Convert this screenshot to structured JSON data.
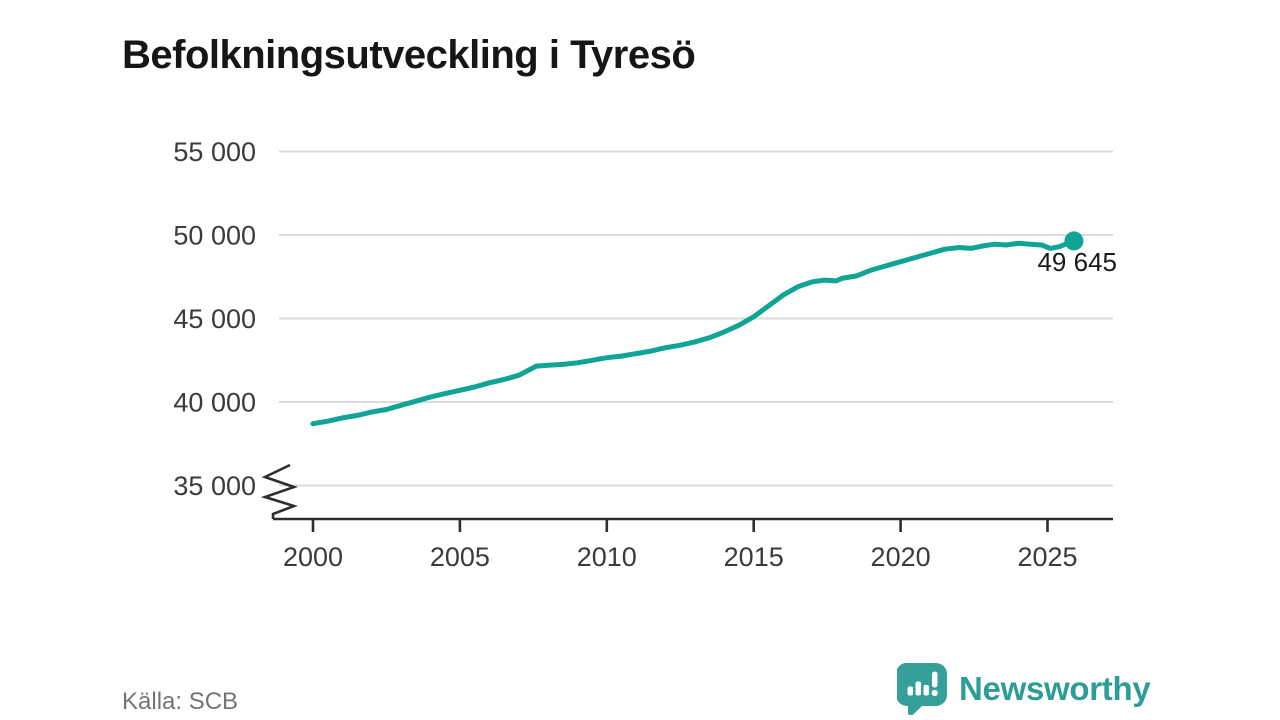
{
  "title": "Befolkningsutveckling i Tyresö",
  "source": "Källa: SCB",
  "branding": {
    "logo_text": "Newsworthy",
    "logo_icon": "bar-chart-speech-bubble-icon"
  },
  "colors": {
    "line": "#10a494",
    "end_dot": "#10a494",
    "grid": "#dcdcdc",
    "axis": "#2e2e2e",
    "tick_label": "#3b3b3b",
    "title_text": "#161616",
    "source_text": "#757575",
    "brand_teal": "#2f9d97",
    "background": "#ffffff"
  },
  "chart_data": {
    "type": "line",
    "title": "Befolkningsutveckling i Tyresö",
    "xlabel": "",
    "ylabel": "",
    "grid": "horizontal",
    "legend": "none",
    "axis_break_low": true,
    "xlim": [
      1998.6,
      2027.2
    ],
    "ylim": [
      33000,
      55000
    ],
    "x_ticks": [
      2000,
      2005,
      2010,
      2015,
      2020,
      2025
    ],
    "x_tick_labels": [
      "2000",
      "2005",
      "2010",
      "2015",
      "2020",
      "2025"
    ],
    "y_ticks": [
      35000,
      40000,
      45000,
      50000,
      55000
    ],
    "y_tick_labels": [
      "35 000",
      "40 000",
      "45 000",
      "50 000",
      "55 000"
    ],
    "x": [
      2000,
      2000.5,
      2001,
      2001.5,
      2002,
      2002.5,
      2003,
      2003.5,
      2004,
      2004.5,
      2005,
      2005.5,
      2006,
      2006.5,
      2007,
      2007.6,
      2008,
      2008.5,
      2009,
      2009.5,
      2010,
      2010.5,
      2011,
      2011.5,
      2012,
      2012.5,
      2013,
      2013.5,
      2014,
      2014.5,
      2015,
      2015.5,
      2016,
      2016.5,
      2017,
      2017.4,
      2017.8,
      2018,
      2018.5,
      2019,
      2019.5,
      2020,
      2020.5,
      2021,
      2021.5,
      2022,
      2022.4,
      2022.8,
      2023.2,
      2023.6,
      2024,
      2024.4,
      2024.8,
      2025.1,
      2025.4,
      2025.9
    ],
    "y": [
      38700,
      38850,
      39050,
      39200,
      39400,
      39550,
      39800,
      40050,
      40300,
      40500,
      40700,
      40900,
      41150,
      41350,
      41600,
      42150,
      42200,
      42250,
      42350,
      42500,
      42650,
      42750,
      42900,
      43050,
      43250,
      43400,
      43600,
      43850,
      44200,
      44600,
      45100,
      45750,
      46400,
      46900,
      47200,
      47300,
      47250,
      47400,
      47550,
      47900,
      48150,
      48400,
      48650,
      48900,
      49150,
      49250,
      49200,
      49350,
      49450,
      49400,
      49500,
      49450,
      49400,
      49200,
      49300,
      49645
    ],
    "annotation": {
      "text": "49 645",
      "value": 49645,
      "x": 2025.9
    }
  }
}
